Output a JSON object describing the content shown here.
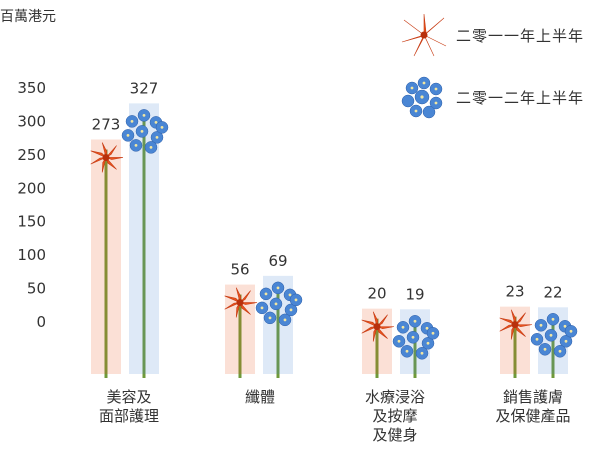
{
  "unit_label": "百萬港元",
  "chart_data": {
    "type": "bar",
    "categories": [
      "美容及\n面部護理",
      "纖體",
      "水療浸浴\n及按摩\n及健身",
      "銷售護膚\n及保健產品"
    ],
    "series": [
      {
        "name": "二零一一年上半年",
        "values": [
          273,
          56,
          20,
          23
        ],
        "color": "#e8541e"
      },
      {
        "name": "二零一二年上半年",
        "values": [
          327,
          69,
          19,
          22
        ],
        "color": "#4a86d4"
      }
    ],
    "yticks": [
      0,
      50,
      100,
      150,
      200,
      250,
      300,
      350
    ],
    "ylim": [
      0,
      350
    ],
    "grid": false,
    "legend": "top-right"
  }
}
